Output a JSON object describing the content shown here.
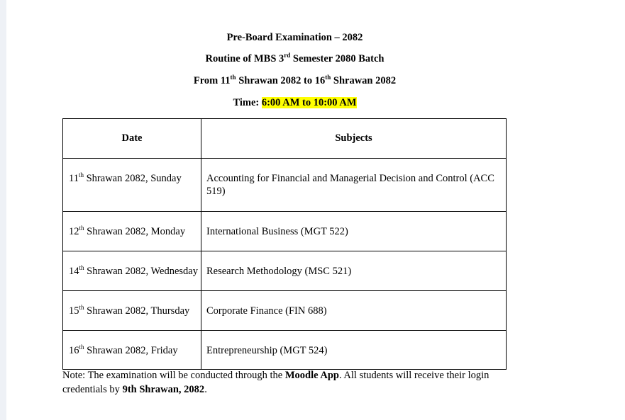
{
  "header": {
    "title": "Pre-Board Examination – 2082",
    "routine": {
      "pre": "Routine of MBS 3",
      "sup": "rd",
      "post": " Semester 2080 Batch"
    },
    "range": {
      "a": "From 11",
      "a_sup": "th",
      "b": " Shrawan 2082 to 16",
      "b_sup": "th",
      "c": " Shrawan 2082"
    },
    "time": {
      "label": "Time: ",
      "value": "6:00 AM to 10:00 AM",
      "highlight_color": "#ffff00"
    }
  },
  "table": {
    "headers": [
      "Date",
      "Subjects"
    ],
    "rows": [
      {
        "day": "11",
        "sup": "th",
        "date": " Shrawan 2082, Sunday",
        "subject": "Accounting for Financial and Managerial Decision and Control (ACC 519)"
      },
      {
        "day": "12",
        "sup": "th",
        "date": " Shrawan 2082, Monday",
        "subject": "International Business (MGT 522)"
      },
      {
        "day": "14",
        "sup": "th",
        "date": " Shrawan 2082, Wednesday",
        "subject": "Research Methodology (MSC 521)"
      },
      {
        "day": "15",
        "sup": "th",
        "date": " Shrawan 2082, Thursday",
        "subject": "Corporate Finance (FIN 688)"
      },
      {
        "day": "16",
        "sup": "th",
        "date": " Shrawan 2082, Friday",
        "subject": "Entrepreneurship (MGT 524)"
      }
    ]
  },
  "note": {
    "t1": "Note: The examination will be conducted through the ",
    "b1": "Moodle App",
    "t2": ". All students will receive their login credentials by ",
    "b2": "9th Shrawan, 2082",
    "t3": "."
  }
}
